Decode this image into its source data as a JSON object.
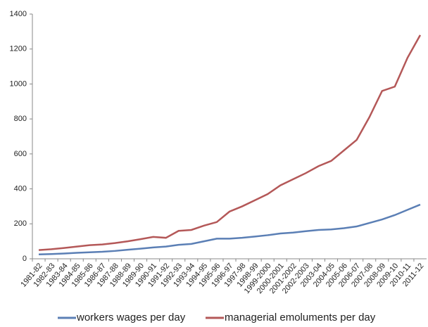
{
  "chart_data": {
    "type": "line",
    "categories": [
      "1981-82",
      "1982-83",
      "1983-84",
      "1984-85",
      "1985-86",
      "1986-87",
      "1987-88",
      "1988-89",
      "1989-90",
      "1990-91",
      "1991-92",
      "1992-93",
      "1993-94",
      "1994-95",
      "1995-96",
      "1996-97",
      "1997-98",
      "1998-99",
      "1999-2000",
      "2000-2001",
      "2001-2002",
      "2002-2003",
      "2003-04",
      "2004-05",
      "2005-06",
      "2006-07",
      "2007-08",
      "2008-09",
      "2009-10",
      "2010-11",
      "2011-12"
    ],
    "series": [
      {
        "name": "workers wages per day",
        "color": "#5b7fb5",
        "values": [
          25,
          27,
          30,
          34,
          37,
          40,
          45,
          52,
          58,
          65,
          70,
          80,
          85,
          100,
          115,
          115,
          120,
          127,
          135,
          145,
          150,
          158,
          165,
          168,
          175,
          185,
          205,
          225,
          250,
          280,
          310
        ]
      },
      {
        "name": "managerial emoluments per day",
        "color": "#b45858",
        "values": [
          50,
          55,
          62,
          70,
          78,
          82,
          90,
          100,
          112,
          125,
          120,
          160,
          165,
          190,
          210,
          270,
          300,
          335,
          370,
          420,
          455,
          490,
          530,
          560,
          620,
          680,
          810,
          960,
          985,
          1150,
          1280
        ]
      }
    ],
    "ylim": [
      0,
      1400
    ],
    "yticks": [
      0,
      200,
      400,
      600,
      800,
      1000,
      1200,
      1400
    ],
    "grid": false,
    "legend": "bottom"
  }
}
